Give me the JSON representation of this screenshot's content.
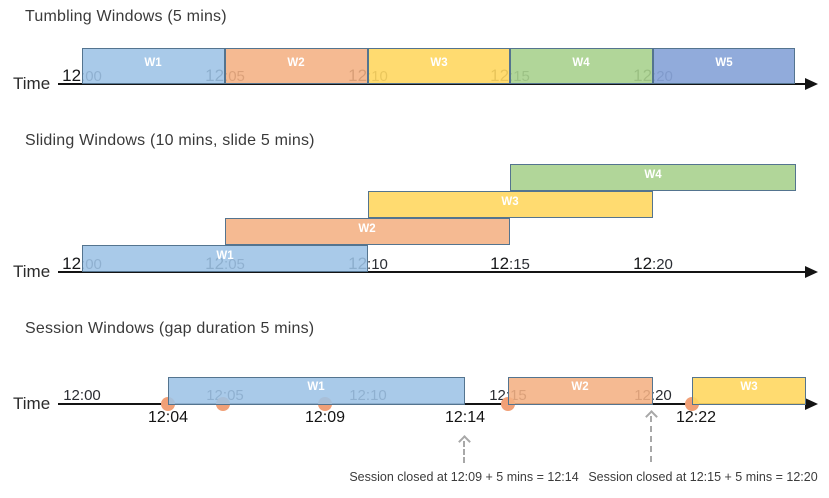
{
  "palette": {
    "window_blue": "#9DC3E6",
    "window_orange": "#F4B183",
    "window_yellow": "#FFD966",
    "window_green": "#A9D18E",
    "window_dark_blue": "#8FAADC",
    "window_border": "#54748F",
    "event_dot": "#F1A077",
    "axis": "#141414",
    "annotation_gray": "#A8A8A8"
  },
  "tumbling": {
    "title": "Tumbling Windows (5 mins)",
    "axis_label": "Time",
    "ticks": [
      "12:00",
      "12:05",
      "12:10",
      "12:15",
      "12:20"
    ],
    "windows": [
      {
        "label": "W1",
        "start": "12:00",
        "end": "12:05",
        "color": "#9DC3E6"
      },
      {
        "label": "W2",
        "start": "12:05",
        "end": "12:10",
        "color": "#F4B183"
      },
      {
        "label": "W3",
        "start": "12:10",
        "end": "12:15",
        "color": "#FFD966"
      },
      {
        "label": "W4",
        "start": "12:15",
        "end": "12:20",
        "color": "#A9D18E"
      },
      {
        "label": "W5",
        "start": "12:20",
        "end": "12:25",
        "color": "#8FAADC"
      }
    ]
  },
  "sliding": {
    "title": "Sliding Windows (10 mins, slide 5 mins)",
    "axis_label": "Time",
    "ticks": [
      "12:00",
      "12:05",
      "12:10",
      "12:15",
      "12:20"
    ],
    "windows": [
      {
        "label": "W1",
        "start": "12:00",
        "end": "12:10",
        "color": "#9DC3E6"
      },
      {
        "label": "W2",
        "start": "12:05",
        "end": "12:15",
        "color": "#F4B183"
      },
      {
        "label": "W3",
        "start": "12:10",
        "end": "12:20",
        "color": "#FFD966"
      },
      {
        "label": "W4",
        "start": "12:15",
        "end": "12:25",
        "color": "#A9D18E"
      }
    ]
  },
  "session": {
    "title": "Session Windows (gap duration 5 mins)",
    "axis_label": "Time",
    "ticks": [
      "12:00",
      "12:05",
      "12:10",
      "12:15",
      "12:20"
    ],
    "windows": [
      {
        "label": "W1",
        "start": "12:04",
        "end": "12:14",
        "color": "#9DC3E6"
      },
      {
        "label": "W2",
        "start": "12:15",
        "end": "12:20",
        "color": "#F4B183"
      },
      {
        "label": "W3",
        "start": "12:22",
        "color": "#FFD966"
      }
    ],
    "event_dots": [
      "12:04",
      "12:05",
      "12:09",
      "12:15",
      "12:22"
    ],
    "below_axis_labels": [
      "12:04",
      "12:09",
      "12:14",
      "12:22"
    ],
    "annotations": [
      "Session closed at 12:09 + 5 mins = 12:14",
      "Session closed at 12:15 + 5 mins = 12:20"
    ]
  }
}
